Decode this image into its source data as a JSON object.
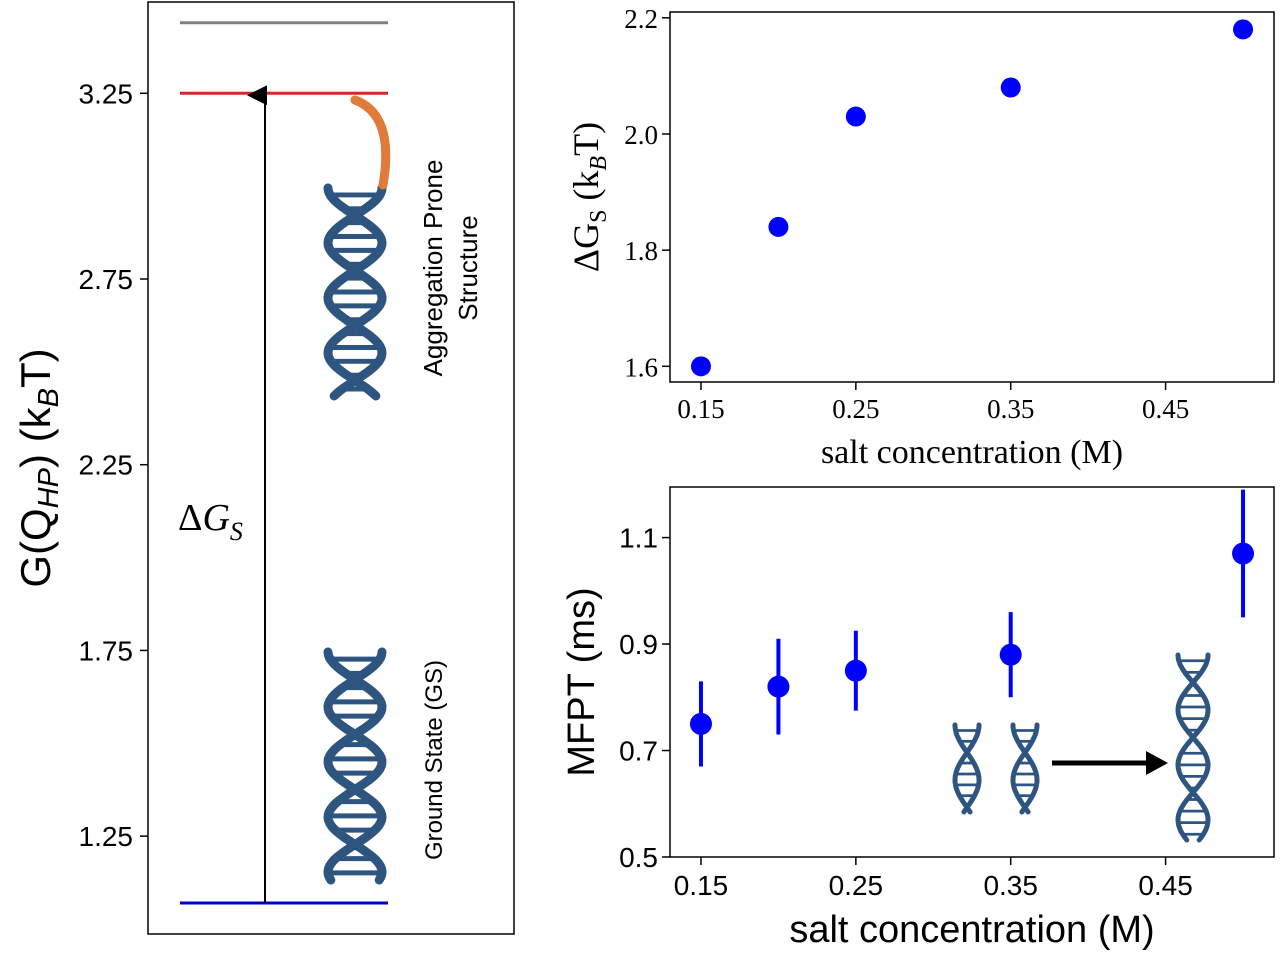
{
  "chart_data": [
    {
      "type": "energy-level-diagram",
      "ylabel": "G(Q_HP) (k_B T)",
      "yticks": [
        "3.25",
        "2.75",
        "2.25",
        "1.75",
        "1.25"
      ],
      "ytick_values": [
        3.25,
        2.75,
        2.25,
        1.75,
        1.25
      ],
      "ylim": [
        1.07,
        3.45
      ],
      "levels": [
        {
          "value": 3.44,
          "color": "#808080"
        },
        {
          "value": 3.25,
          "color": "#d62728"
        },
        {
          "value": 1.07,
          "color": "#0000cc"
        }
      ],
      "arrow_label": "ΔG_S",
      "arrow_from": 1.07,
      "arrow_to": 3.25,
      "states": [
        {
          "label": "Ground State (GS)"
        },
        {
          "label_line1": "Aggregation Prone",
          "label_line2": "Structure"
        }
      ],
      "colors": {
        "dna": "#2e5580",
        "tail": "#e07b39"
      }
    },
    {
      "type": "scatter",
      "x": [
        0.15,
        0.2,
        0.25,
        0.35,
        0.5
      ],
      "y": [
        1.6,
        1.84,
        2.03,
        2.08,
        2.18
      ],
      "xlabel": "salt concentration (M)",
      "ylabel": "ΔG_S (k_B T)",
      "xticks": [
        "0.15",
        "0.25",
        "0.35",
        "0.45"
      ],
      "xtick_values": [
        0.15,
        0.25,
        0.35,
        0.45
      ],
      "yticks": [
        "1.6",
        "1.8",
        "2.0",
        "2.2"
      ],
      "ytick_values": [
        1.6,
        1.8,
        2.0,
        2.2
      ],
      "xlim": [
        0.13,
        0.52
      ],
      "ylim": [
        1.573,
        2.21
      ],
      "color": "#0000ff"
    },
    {
      "type": "scatter",
      "x": [
        0.15,
        0.2,
        0.25,
        0.35,
        0.5
      ],
      "y": [
        0.75,
        0.82,
        0.85,
        0.88,
        1.07
      ],
      "yerr": [
        0.08,
        0.09,
        0.075,
        0.08,
        0.12
      ],
      "xlabel": "salt concentration (M)",
      "ylabel": "MFPT (ms)",
      "xticks": [
        "0.15",
        "0.25",
        "0.35",
        "0.45"
      ],
      "xtick_values": [
        0.15,
        0.25,
        0.35,
        0.45
      ],
      "yticks": [
        "1.1",
        "0.9",
        "0.7",
        "0.5"
      ],
      "ytick_values": [
        1.1,
        0.9,
        0.7,
        0.5
      ],
      "xlim": [
        0.13,
        0.52
      ],
      "ylim": [
        0.5,
        1.195
      ],
      "color": "#0000ff",
      "inset": "two-dna-to-one-dna-arrow"
    }
  ]
}
